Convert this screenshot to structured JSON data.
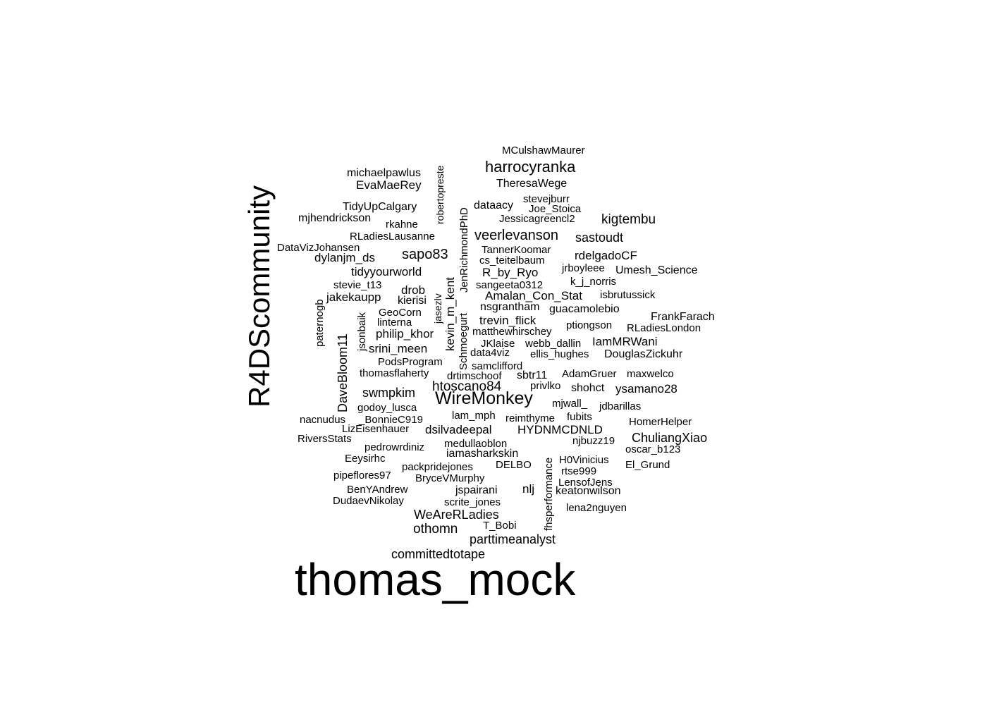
{
  "words": [
    "thomas_mock",
    "R4DScommunity",
    "WireMonkey",
    "harrocyranka",
    "veerlevanson",
    "htoscano84",
    "sapo83",
    "kigtembu",
    "sastoudt",
    "DaveBloom11",
    "MCulshawMaurer",
    "michaelpawlus",
    "EvaMaeRey",
    "TheresaWege",
    "robertopreste",
    "stevejburr",
    "dataacy",
    "Joe_Stoica",
    "TidyUpCalgary",
    "JenRichmondPhD",
    "Jessicagreencl2",
    "mjhendrickson",
    "rkahne",
    "RLadiesLausanne",
    "DataVizJohansen",
    "TannerKoomar",
    "rdelgadoCF",
    "dylanjm_ds",
    "cs_teitelbaum",
    "jrboyleee",
    "Umesh_Science",
    "tidyyourworld",
    "R_by_Ryo",
    "k_j_norris",
    "stevie_t13",
    "sangeeta0312",
    "drob",
    "isbrutussick",
    "jakekaupp",
    "Amalan_Con_Stat",
    "kierisi",
    "kevin_m_kent",
    "jasezlv",
    "paternogb",
    "nsgrantham",
    "guacamolebio",
    "GeoCorn",
    "FrankFarach",
    "jsonbaik",
    "linterna",
    "trevin_flick",
    "ptiongson",
    "RLadiesLondon",
    "Schmoegurt",
    "philip_khor",
    "matthewhirschey",
    "JKlaise",
    "webb_dallin",
    "IamMRWani",
    "srini_meen",
    "data4viz",
    "ellis_hughes",
    "DouglasZickuhr",
    "PodsProgram",
    "samclifford",
    "thomasflaherty",
    "drtimschoof",
    "sbtr11",
    "AdamGruer",
    "maxwelco",
    "privlko",
    "shohct",
    "ysamano28",
    "swmpkim",
    "mjwall_",
    "jdbarillas",
    "godoy_lusca",
    "lam_mph",
    "reimthyme",
    "fubits",
    "nacnudus",
    "_BonnieC919",
    "HomerHelper",
    "LizEisenhauer",
    "dsilvadeepal",
    "HYDNMCDNLD",
    "RiversStats",
    "njbuzz19",
    "ChuliangXiao",
    "medullaoblon",
    "pedrowrdiniz",
    "iamasharkskin",
    "oscar_b123",
    "fhsperformance",
    "Eeysirhc",
    "H0Vinicius",
    "packpridejones",
    "DELBO",
    "El_Grund",
    "rtse999",
    "pipeflores97",
    "BryceVMurphy",
    "LensofJens",
    "BenYAndrew",
    "nlj",
    "jspairani",
    "keatonwilson",
    "DudaevNikolay",
    "scrite_jones",
    "lena2nguyen",
    "WeAreRLadies",
    "T_Bobi",
    "othomn",
    "parttimeanalyst",
    "committedtotape"
  ]
}
